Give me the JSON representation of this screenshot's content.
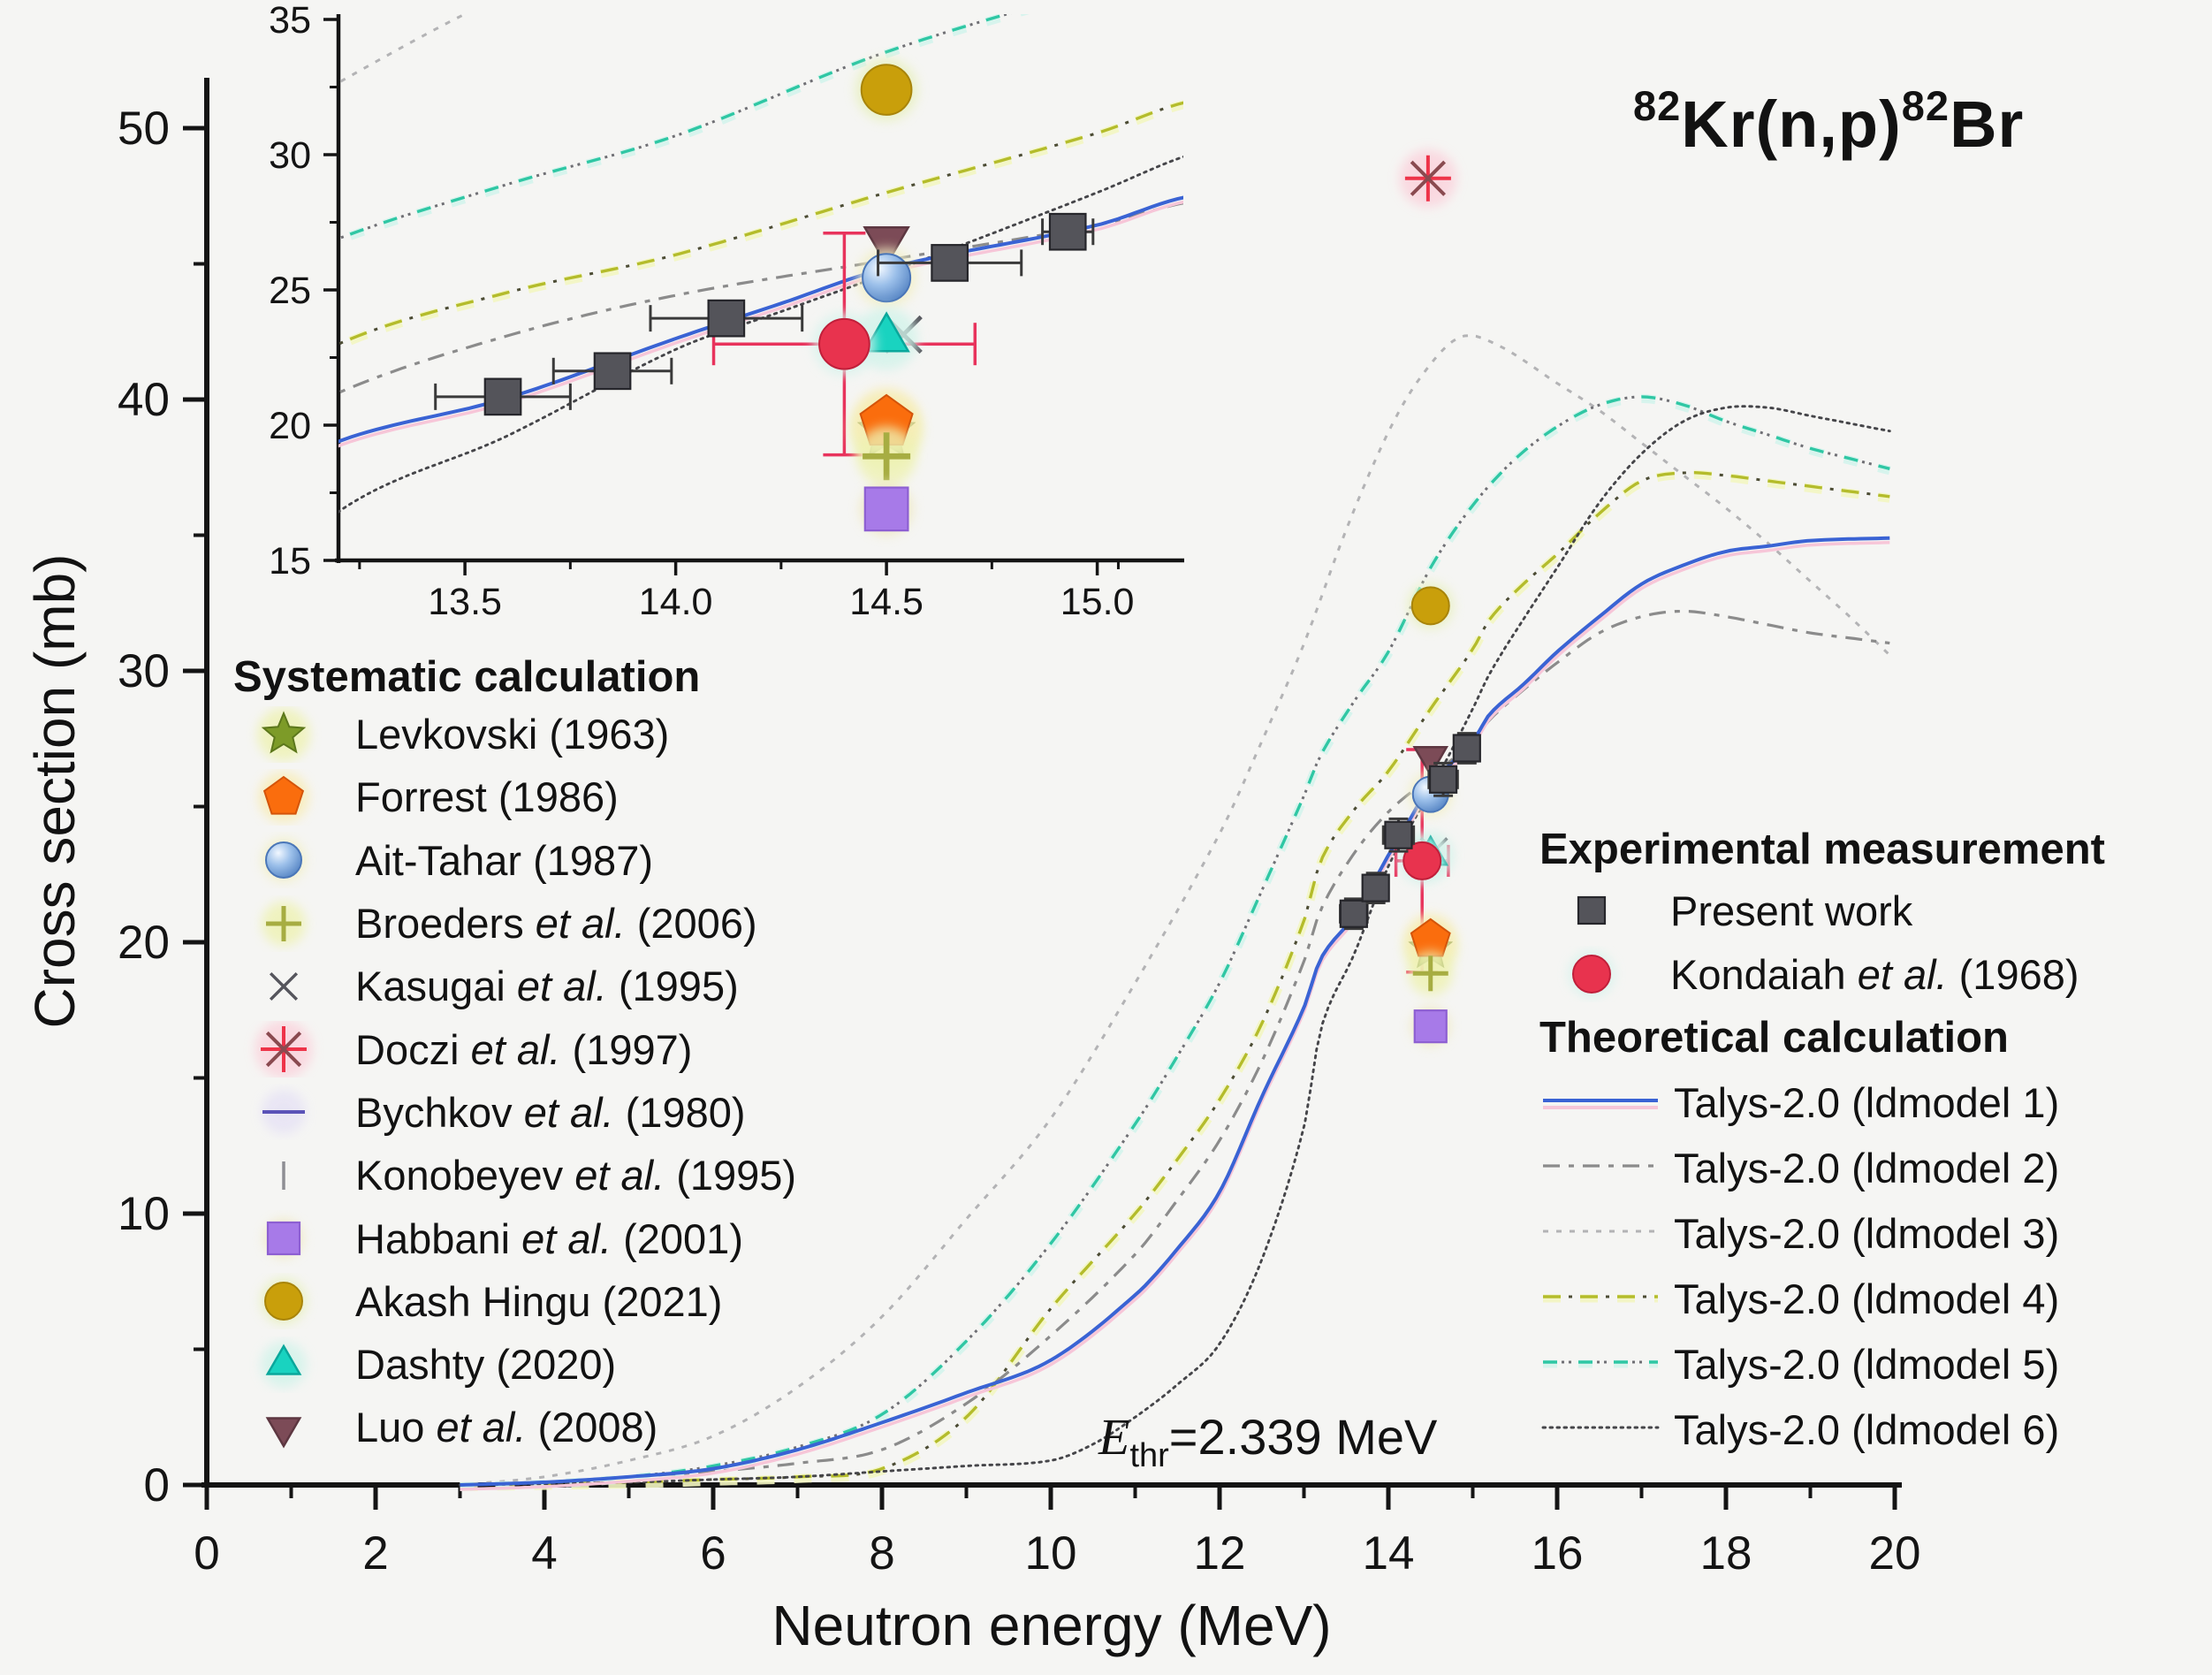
{
  "figure": {
    "background": "#f5f5f3",
    "ink": "#121212"
  },
  "title": {
    "sup1": "82",
    "base1": "Kr(n,p)",
    "sup2": "82",
    "base2": "Br"
  },
  "axes": {
    "x_label": "Neutron energy (MeV)",
    "y_label": "Cross section (mb)"
  },
  "annotation": {
    "e": "E",
    "sub": "thr",
    "eq": "=2.339 MeV"
  },
  "legend_left": {
    "header": "Systematic calculation",
    "items": [
      {
        "style": "levkovski",
        "label": "Levkovski (1963)"
      },
      {
        "style": "forrest",
        "label": "Forrest (1986)"
      },
      {
        "style": "ait_tahar",
        "label": "Ait-Tahar (1987)"
      },
      {
        "style": "broeders",
        "label": "Broeders et al. (2006)"
      },
      {
        "style": "kasugai",
        "label": "Kasugai et al. (1995)"
      },
      {
        "style": "doczi",
        "label": "Doczi et al. (1997)"
      },
      {
        "style": "bychkov",
        "label": "Bychkov et al. (1980)"
      },
      {
        "style": "konobeyev",
        "label": "Konobeyev et al. (1995)"
      },
      {
        "style": "habbani",
        "label": "Habbani et al. (2001)"
      },
      {
        "style": "akash",
        "label": "Akash Hingu (2021)"
      },
      {
        "style": "dashty",
        "label": "Dashty (2020)"
      },
      {
        "style": "luo",
        "label": "Luo et al. (2008)"
      }
    ]
  },
  "legend_right": {
    "exp_header": "Experimental measurement",
    "exp_items": [
      {
        "style": "present",
        "label": "Present work"
      },
      {
        "style": "kondaiah",
        "label": "Kondaiah et al. (1968)"
      }
    ],
    "theo_header": "Theoretical calculation",
    "theo_items": [
      {
        "series": "ld1",
        "label": "Talys-2.0 (ldmodel 1)"
      },
      {
        "series": "ld2",
        "label": "Talys-2.0 (ldmodel 2)"
      },
      {
        "series": "ld3",
        "label": "Talys-2.0 (ldmodel 3)"
      },
      {
        "series": "ld4",
        "label": "Talys-2.0 (ldmodel 4)"
      },
      {
        "series": "ld5",
        "label": "Talys-2.0 (ldmodel 5)"
      },
      {
        "series": "ld6",
        "label": "Talys-2.0 (ldmodel 6)"
      }
    ]
  },
  "chart_data": {
    "type": "line",
    "reaction": "82Kr(n,p)82Br",
    "threshold_MeV": 2.339,
    "x_axis": {
      "label": "Neutron energy (MeV)",
      "lim": [
        0,
        20
      ],
      "major_ticks": [
        0,
        2,
        4,
        6,
        8,
        10,
        12,
        14,
        16,
        18,
        20
      ],
      "minor_ticks": [
        1,
        3,
        5,
        7,
        9,
        11,
        13,
        15,
        17,
        19
      ]
    },
    "y_axis": {
      "label": "Cross section (mb)",
      "lim": [
        0,
        50
      ],
      "major_ticks": [
        0,
        10,
        20,
        30,
        40,
        50
      ],
      "minor_ticks": [
        5,
        15,
        25,
        35,
        45
      ]
    },
    "inset": {
      "x_lim": [
        13.2,
        15.2
      ],
      "y_lim": [
        15,
        35
      ],
      "x_tick_values": [
        13.5,
        14.0,
        14.5,
        15.0
      ],
      "x_tick_labels": [
        "13.5",
        "14.0",
        "14.5",
        "15.0"
      ],
      "x_minor": [
        13.25,
        13.75,
        14.25,
        14.75,
        15.05
      ],
      "y_tick_values": [
        15,
        20,
        25,
        30,
        35
      ],
      "y_tick_labels": [
        "15",
        "20",
        "25",
        "30",
        "35"
      ],
      "y_minor": [
        17.5,
        22.5,
        27.5,
        32.5
      ]
    },
    "marker_styles": {
      "present": {
        "shape": "square",
        "size": 15,
        "fill": "#54545a",
        "stroke": "#26262b",
        "err": "#3a3a3a"
      },
      "kondaiah": {
        "shape": "circle",
        "size": 21,
        "fill": "#e8334e",
        "stroke": "#c01f3a",
        "err": "#e8335c",
        "halo": "#d7f3ec"
      },
      "levkovski": {
        "shape": "star",
        "size": 24,
        "fill": "#7d9b28",
        "stroke": "#5c771b",
        "halo": "#eef2b2"
      },
      "forrest": {
        "shape": "pentagon",
        "size": 23,
        "fill": "#fa6d0d",
        "stroke": "#d4540a",
        "halo": "#f8ecb4"
      },
      "ait_tahar": {
        "shape": "sphere",
        "size": 20,
        "fill": "#8fb8e8",
        "stroke": "#4a76b8",
        "halo": "#f2efc4"
      },
      "broeders": {
        "shape": "plus",
        "size": 20,
        "stroke": "#a7ad42",
        "w": 5,
        "halo": "#eef2b2"
      },
      "kasugai": {
        "shape": "x",
        "size": 19,
        "stroke": "#55555c",
        "w": 3.5
      },
      "doczi": {
        "shape": "asterisk",
        "size": 26,
        "stroke": "#ee3349",
        "stroke2": "#8a4a50",
        "w": 4,
        "halo": "#fbd2dc"
      },
      "bychkov": {
        "shape": "hline",
        "size": 20,
        "stroke": "#5b53b8",
        "w": 4,
        "halo": "#e6e2f5"
      },
      "konobeyev": {
        "shape": "vbar",
        "size": 16,
        "stroke": "#8f8f94",
        "w": 3.5
      },
      "habbani": {
        "shape": "square",
        "size": 18,
        "fill": "#a77ae8",
        "stroke": "#8d5fd2",
        "halo": "#efe9c2"
      },
      "akash": {
        "shape": "circle",
        "size": 21,
        "fill": "#c99f0b",
        "stroke": "#a8840a",
        "halo": "#e7f0bd"
      },
      "dashty": {
        "shape": "triup",
        "size": 21,
        "fill": "#19d3c0",
        "stroke": "#0aa79b",
        "halo": "#d2f3ea"
      },
      "luo": {
        "shape": "tridown",
        "size": 21,
        "fill": "#7c4b57",
        "stroke": "#5d3741"
      }
    },
    "series": [
      {
        "id": "ld3",
        "label": "Talys-2.0 (ldmodel 3)",
        "style": {
          "color": "#b3b3b5",
          "width": 3,
          "dash": "6 9"
        },
        "points": [
          [
            3,
            0
          ],
          [
            4,
            0.3
          ],
          [
            5,
            0.9
          ],
          [
            6,
            1.8
          ],
          [
            7,
            3.6
          ],
          [
            8,
            6.2
          ],
          [
            9,
            9.8
          ],
          [
            10,
            13.5
          ],
          [
            11,
            18.5
          ],
          [
            12,
            24.0
          ],
          [
            12.5,
            27.4
          ],
          [
            13,
            31.0
          ],
          [
            13.5,
            35.2
          ],
          [
            14,
            38.8
          ],
          [
            14.4,
            40.9
          ],
          [
            14.85,
            42.3
          ],
          [
            15.3,
            42.0
          ],
          [
            16,
            40.6
          ],
          [
            16.5,
            39.6
          ],
          [
            17,
            38.4
          ],
          [
            17.5,
            37.2
          ],
          [
            18,
            36.0
          ],
          [
            18.5,
            34.7
          ],
          [
            19,
            33.3
          ],
          [
            19.5,
            31.9
          ],
          [
            20,
            30.4
          ]
        ]
      },
      {
        "id": "ld4",
        "label": "Talys-2.0 (ldmodel 4)",
        "style": {
          "color": "#b4bc2b",
          "width": 3.4,
          "dash": "20 22",
          "halo": "#f3f6c2",
          "dash2": "4 38",
          "dash2offset": -29,
          "color2": "#4c4c34"
        },
        "points": [
          [
            3,
            0
          ],
          [
            5,
            0.1
          ],
          [
            6,
            0.2
          ],
          [
            7,
            0.3
          ],
          [
            8,
            0.6
          ],
          [
            9,
            2.5
          ],
          [
            10,
            6.5
          ],
          [
            11,
            10.0
          ],
          [
            11.5,
            12.0
          ],
          [
            12,
            14.2
          ],
          [
            12.5,
            17.0
          ],
          [
            13,
            20.8
          ],
          [
            13.2,
            23.0
          ],
          [
            13.6,
            24.9
          ],
          [
            14,
            26.3
          ],
          [
            14.5,
            28.6
          ],
          [
            15,
            30.8
          ],
          [
            15.2,
            31.9
          ],
          [
            15.6,
            33.2
          ],
          [
            16,
            34.3
          ],
          [
            16.5,
            35.8
          ],
          [
            17,
            37.0
          ],
          [
            17.5,
            37.3
          ],
          [
            18,
            37.2
          ],
          [
            18.5,
            37.0
          ],
          [
            19,
            36.8
          ],
          [
            19.5,
            36.6
          ],
          [
            20,
            36.4
          ]
        ]
      },
      {
        "id": "ld5",
        "label": "Talys-2.0 (ldmodel 5)",
        "style": {
          "color": "#2fc7a4",
          "width": 3.4,
          "dash": "16 24",
          "halo": "#d4f4ec",
          "dash2": "3 5 3 29",
          "dash2offset": -21,
          "color2": "#6f6f74"
        },
        "points": [
          [
            3,
            0
          ],
          [
            4,
            0.1
          ],
          [
            5,
            0.3
          ],
          [
            6,
            0.7
          ],
          [
            7,
            1.4
          ],
          [
            8,
            2.6
          ],
          [
            9,
            5.3
          ],
          [
            10,
            8.9
          ],
          [
            11,
            13.3
          ],
          [
            11.5,
            15.8
          ],
          [
            12,
            18.5
          ],
          [
            12.5,
            21.9
          ],
          [
            13,
            25.4
          ],
          [
            13.2,
            26.9
          ],
          [
            13.6,
            28.9
          ],
          [
            14,
            30.7
          ],
          [
            14.5,
            33.8
          ],
          [
            15,
            36.1
          ],
          [
            15.5,
            37.8
          ],
          [
            16,
            39.0
          ],
          [
            16.5,
            39.8
          ],
          [
            17,
            40.1
          ],
          [
            17.5,
            39.8
          ],
          [
            18,
            39.2
          ],
          [
            18.5,
            38.7
          ],
          [
            19,
            38.2
          ],
          [
            19.5,
            37.8
          ],
          [
            20,
            37.4
          ]
        ]
      },
      {
        "id": "ld2",
        "label": "Talys-2.0 (ldmodel 2)",
        "style": {
          "color": "#8b8b8b",
          "width": 3.2,
          "dash": "19 10 6 10"
        },
        "points": [
          [
            3,
            0
          ],
          [
            4,
            0.1
          ],
          [
            5,
            0.3
          ],
          [
            6,
            0.5
          ],
          [
            7,
            0.8
          ],
          [
            8,
            1.3
          ],
          [
            9,
            3.0
          ],
          [
            10,
            5.5
          ],
          [
            11,
            8.5
          ],
          [
            11.5,
            10.5
          ],
          [
            12,
            12.7
          ],
          [
            12.5,
            15.6
          ],
          [
            13,
            19.3
          ],
          [
            13.2,
            21.2
          ],
          [
            13.6,
            23.3
          ],
          [
            14,
            24.8
          ],
          [
            14.5,
            26.1
          ],
          [
            15,
            27.4
          ],
          [
            15.2,
            28.2
          ],
          [
            15.6,
            29.3
          ],
          [
            16,
            30.3
          ],
          [
            16.5,
            31.4
          ],
          [
            17,
            32.0
          ],
          [
            17.5,
            32.2
          ],
          [
            18,
            32.0
          ],
          [
            18.5,
            31.7
          ],
          [
            19,
            31.4
          ],
          [
            19.5,
            31.2
          ],
          [
            20,
            31.0
          ]
        ]
      },
      {
        "id": "ld6",
        "label": "Talys-2.0 (ldmodel 6)",
        "style": {
          "color": "#454549",
          "width": 2.9,
          "dash": "2.6 5.4",
          "cap": "round"
        },
        "points": [
          [
            3,
            0
          ],
          [
            5,
            0.1
          ],
          [
            6,
            0.2
          ],
          [
            7,
            0.3
          ],
          [
            8,
            0.5
          ],
          [
            9,
            0.7
          ],
          [
            10,
            0.9
          ],
          [
            10.5,
            1.5
          ],
          [
            11,
            2.5
          ],
          [
            11.5,
            3.7
          ],
          [
            12,
            5.2
          ],
          [
            12.5,
            8.3
          ],
          [
            13,
            13.2
          ],
          [
            13.2,
            16.8
          ],
          [
            13.6,
            19.6
          ],
          [
            14,
            22.8
          ],
          [
            14.25,
            24.2
          ],
          [
            14.5,
            25.6
          ],
          [
            15,
            28.6
          ],
          [
            15.2,
            29.9
          ],
          [
            15.6,
            31.9
          ],
          [
            16,
            33.8
          ],
          [
            16.5,
            36.2
          ],
          [
            17,
            38.0
          ],
          [
            17.5,
            39.2
          ],
          [
            18,
            39.7
          ],
          [
            18.5,
            39.7
          ],
          [
            19,
            39.4
          ],
          [
            19.5,
            39.1
          ],
          [
            20,
            38.8
          ]
        ]
      },
      {
        "id": "ld1",
        "label": "Talys-2.0 (ldmodel 1)",
        "style": {
          "color": "#3a63d4",
          "width": 4,
          "shadow": "#f7c6d8"
        },
        "points": [
          [
            3,
            0
          ],
          [
            4,
            0.1
          ],
          [
            5,
            0.3
          ],
          [
            6,
            0.6
          ],
          [
            7,
            1.3
          ],
          [
            8,
            2.3
          ],
          [
            9,
            3.4
          ],
          [
            10,
            4.6
          ],
          [
            11,
            7.0
          ],
          [
            11.5,
            8.7
          ],
          [
            12,
            10.8
          ],
          [
            12.5,
            14.3
          ],
          [
            13,
            17.6
          ],
          [
            13.2,
            19.4
          ],
          [
            13.6,
            21.0
          ],
          [
            14,
            23.2
          ],
          [
            14.25,
            24.5
          ],
          [
            14.5,
            25.8
          ],
          [
            15,
            27.4
          ],
          [
            15.2,
            28.4
          ],
          [
            15.6,
            29.5
          ],
          [
            16,
            30.7
          ],
          [
            16.5,
            32.0
          ],
          [
            17,
            33.2
          ],
          [
            17.5,
            33.9
          ],
          [
            18,
            34.4
          ],
          [
            18.5,
            34.6
          ],
          [
            19,
            34.8
          ],
          [
            20,
            34.9
          ]
        ]
      }
    ],
    "experimental": {
      "present_work": {
        "style": "present",
        "points": [
          {
            "x": 13.59,
            "y": 21.05,
            "ex": 0.16,
            "ey": 0.55
          },
          {
            "x": 13.85,
            "y": 22.0,
            "ex": 0.14,
            "ey": 0.55
          },
          {
            "x": 14.12,
            "y": 23.95,
            "ex": 0.18,
            "ey": 0.6
          },
          {
            "x": 14.65,
            "y": 26.0,
            "ex": 0.17,
            "ey": 0.6
          },
          {
            "x": 14.93,
            "y": 27.15,
            "ex": 0.06,
            "ey": 0.55
          }
        ]
      },
      "kondaiah": {
        "style": "kondaiah",
        "points": [
          {
            "x": 14.4,
            "y": 23.0,
            "ex": 0.31,
            "ey": 4.1
          }
        ]
      }
    },
    "systematic_points": [
      {
        "style": "doczi",
        "x": 14.47,
        "y": 48.15
      },
      {
        "style": "akash",
        "x": 14.5,
        "y": 32.4
      },
      {
        "style": "luo",
        "x": 14.5,
        "y": 26.85
      },
      {
        "style": "ait_tahar",
        "x": 14.5,
        "y": 25.45
      },
      {
        "style": "kasugai",
        "x": 14.54,
        "y": 23.35
      },
      {
        "style": "levkovski",
        "x": 14.5,
        "y": 19.75
      },
      {
        "style": "forrest",
        "x": 14.5,
        "y": 20.1
      },
      {
        "style": "broeders",
        "x": 14.5,
        "y": 18.85
      },
      {
        "style": "habbani",
        "x": 14.5,
        "y": 16.9
      },
      {
        "style": "dashty",
        "x": 14.5,
        "y": 23.2
      }
    ]
  }
}
